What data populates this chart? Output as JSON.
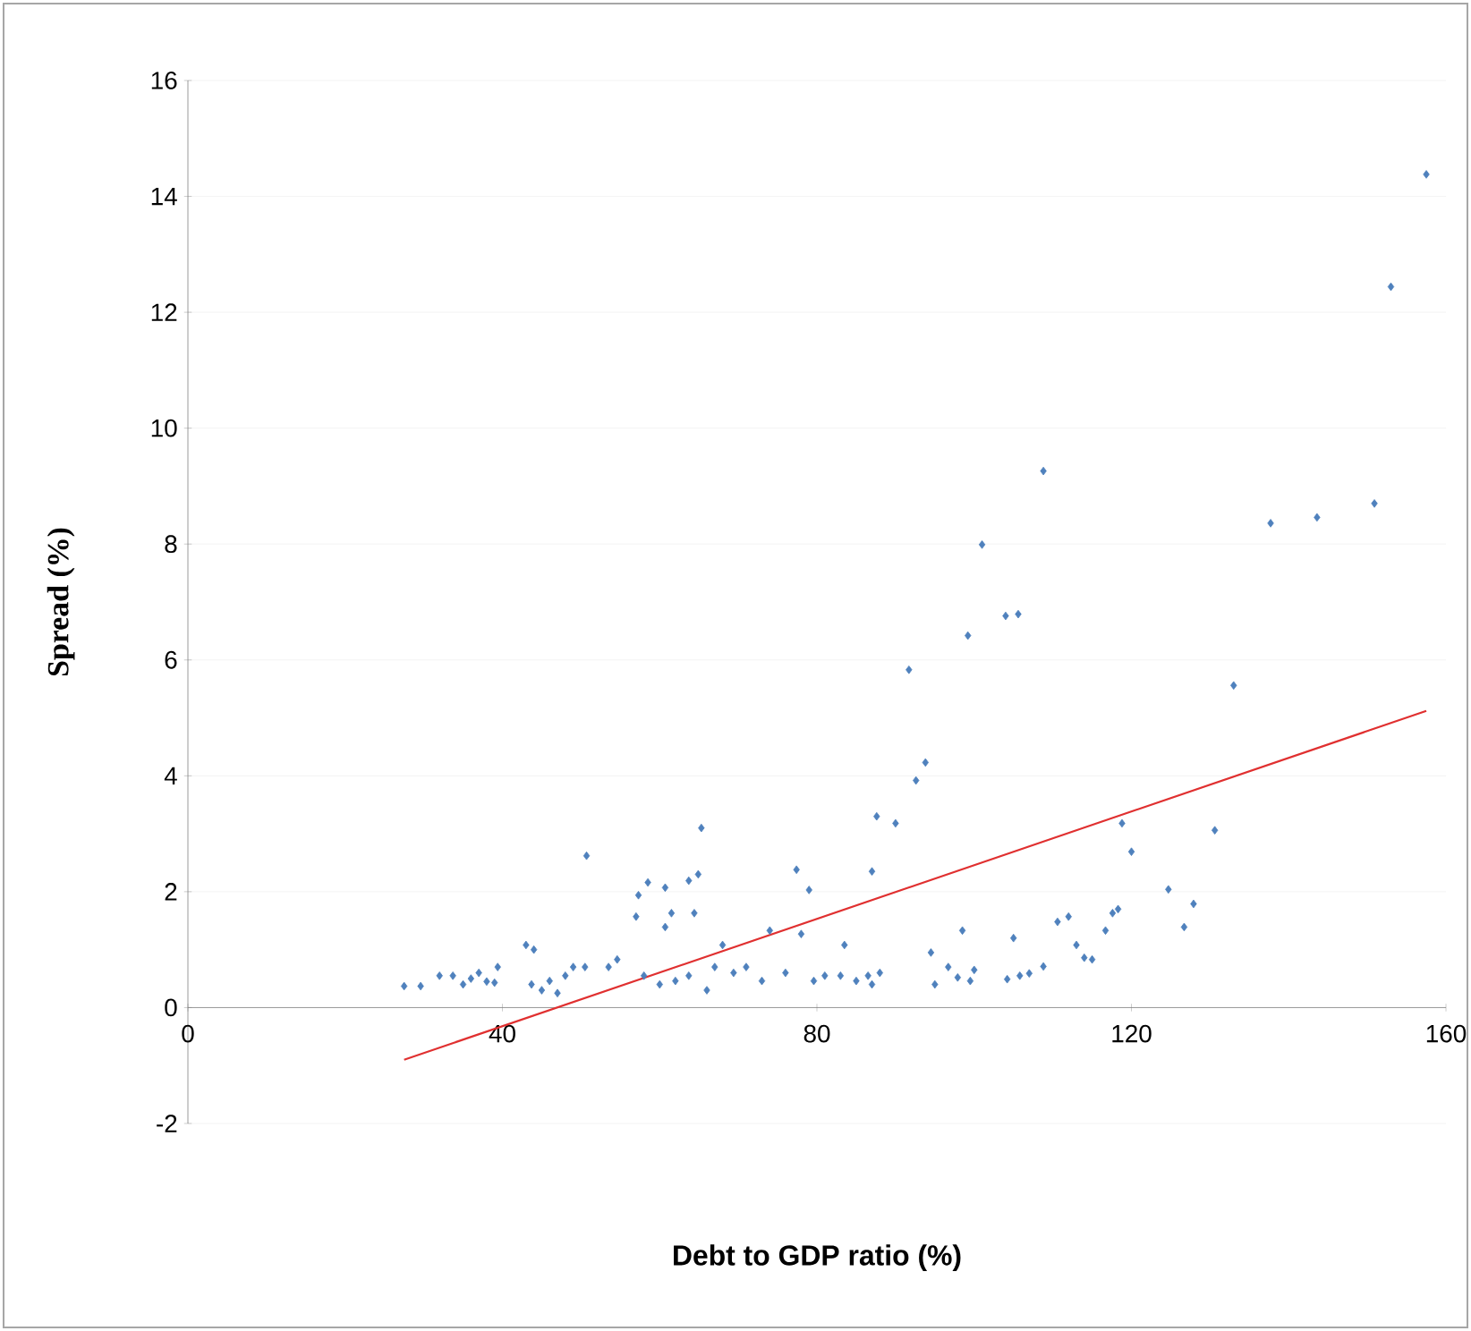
{
  "chart_data": {
    "type": "scatter",
    "xlabel": "Debt to GDP ratio (%)",
    "ylabel": "Spread (%)",
    "xlim": [
      0,
      160
    ],
    "ylim": [
      -2,
      16
    ],
    "xticks": [
      0,
      40,
      80,
      120,
      160
    ],
    "yticks": [
      -2,
      0,
      2,
      4,
      6,
      8,
      10,
      12,
      14,
      16
    ],
    "grid": "y",
    "series": [
      {
        "color": "#4f81bd",
        "marker": "diamond",
        "x": [
          27.5,
          29.6,
          32,
          33.7,
          35,
          36,
          37,
          38,
          39.4,
          39,
          43,
          44,
          43.7,
          45,
          46,
          47,
          48,
          49,
          50.5,
          50.7,
          53.5,
          54.6,
          57,
          57.3,
          58.5,
          60.7,
          60.7,
          61.5,
          63.7,
          64.9,
          65.3,
          64.4,
          58,
          60,
          62,
          63.7,
          66,
          67,
          68,
          69.4,
          71,
          73,
          74,
          76,
          78,
          77.4,
          79,
          79.6,
          81,
          83,
          83.5,
          85,
          86.5,
          87,
          88,
          87,
          87.6,
          90,
          91.7,
          92.6,
          93.8,
          94.5,
          95,
          96.7,
          97.9,
          98.5,
          99.5,
          100,
          99.2,
          101,
          104,
          105.6,
          108.8,
          104.2,
          105,
          105.8,
          107,
          108.8,
          110.6,
          112,
          113,
          114,
          115,
          116.7,
          117.6,
          118.3,
          118.8,
          120,
          124.7,
          126.7,
          127.9,
          130.6,
          133,
          137.7,
          143.6,
          150.9,
          153,
          157.5
        ],
        "values": [
          0.37,
          0.37,
          0.55,
          0.55,
          0.4,
          0.5,
          0.6,
          0.45,
          0.7,
          0.43,
          1.08,
          1.0,
          0.4,
          0.3,
          0.46,
          0.25,
          0.55,
          0.7,
          0.7,
          2.62,
          0.7,
          0.83,
          1.57,
          1.94,
          2.16,
          2.07,
          1.39,
          1.63,
          2.19,
          2.3,
          3.1,
          1.63,
          0.55,
          0.4,
          0.46,
          0.55,
          0.3,
          0.7,
          1.08,
          0.6,
          0.7,
          0.46,
          1.33,
          0.6,
          1.27,
          2.38,
          2.03,
          0.46,
          0.55,
          0.55,
          1.08,
          0.46,
          0.55,
          0.4,
          0.6,
          2.35,
          3.3,
          3.18,
          5.83,
          3.92,
          4.23,
          0.95,
          0.4,
          0.7,
          0.52,
          1.33,
          0.46,
          0.65,
          6.42,
          7.99,
          6.76,
          6.79,
          9.26,
          0.49,
          1.2,
          0.55,
          0.59,
          0.71,
          1.48,
          1.57,
          1.08,
          0.86,
          0.83,
          1.33,
          1.63,
          1.7,
          3.18,
          2.69,
          2.04,
          1.39,
          1.79,
          3.06,
          5.56,
          8.36,
          8.46,
          8.7,
          12.44,
          14.38
        ]
      },
      {
        "type": "line",
        "color": "#e03030",
        "marker": "none",
        "x": [
          27.5,
          157.5
        ],
        "values": [
          -0.9,
          5.12
        ]
      }
    ]
  }
}
